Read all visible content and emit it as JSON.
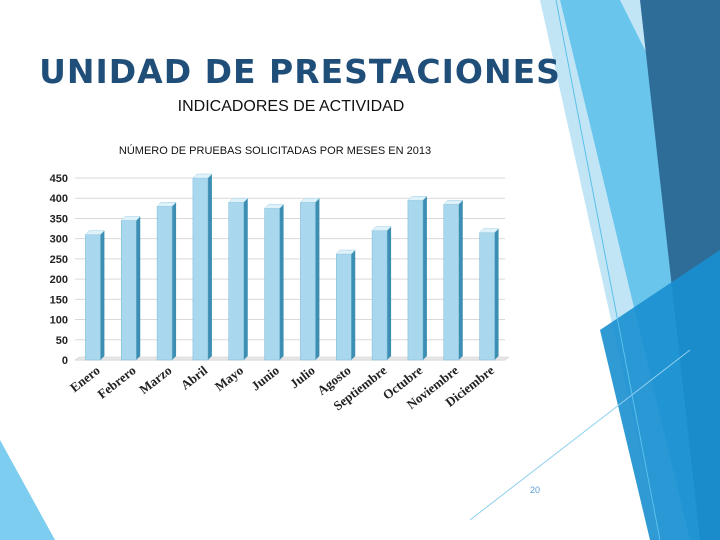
{
  "slide": {
    "title": "UNIDAD DE PRESTACIONES",
    "subtitle": "INDICADORES DE ACTIVIDAD",
    "page_number": "20"
  },
  "colors": {
    "bar_front": "#a9d8ee",
    "bar_top": "#dff2fa",
    "bar_side": "#3c8fb3",
    "title": "#1f4e79",
    "deco_light": "#8fd0ef",
    "deco_mid": "#5bc0eb",
    "deco_dark": "#2f6d99",
    "deco_accent": "#1a8fd0"
  },
  "chart_data": {
    "type": "bar",
    "title": "NÚMERO DE PRUEBAS SOLICITADAS POR MESES EN 2013",
    "categories": [
      "Enero",
      "Febrero",
      "Marzo",
      "Abril",
      "Mayo",
      "Junio",
      "Julio",
      "Agosto",
      "Septiembre",
      "Octubre",
      "Noviembre",
      "Diciembre"
    ],
    "values": [
      310,
      345,
      380,
      450,
      390,
      375,
      390,
      262,
      320,
      395,
      385,
      315
    ],
    "xlabel": "",
    "ylabel": "",
    "ylim": [
      0,
      450
    ],
    "yticks": [
      0,
      50,
      100,
      150,
      200,
      250,
      300,
      350,
      400,
      450
    ],
    "grid": true,
    "legend": "none"
  }
}
